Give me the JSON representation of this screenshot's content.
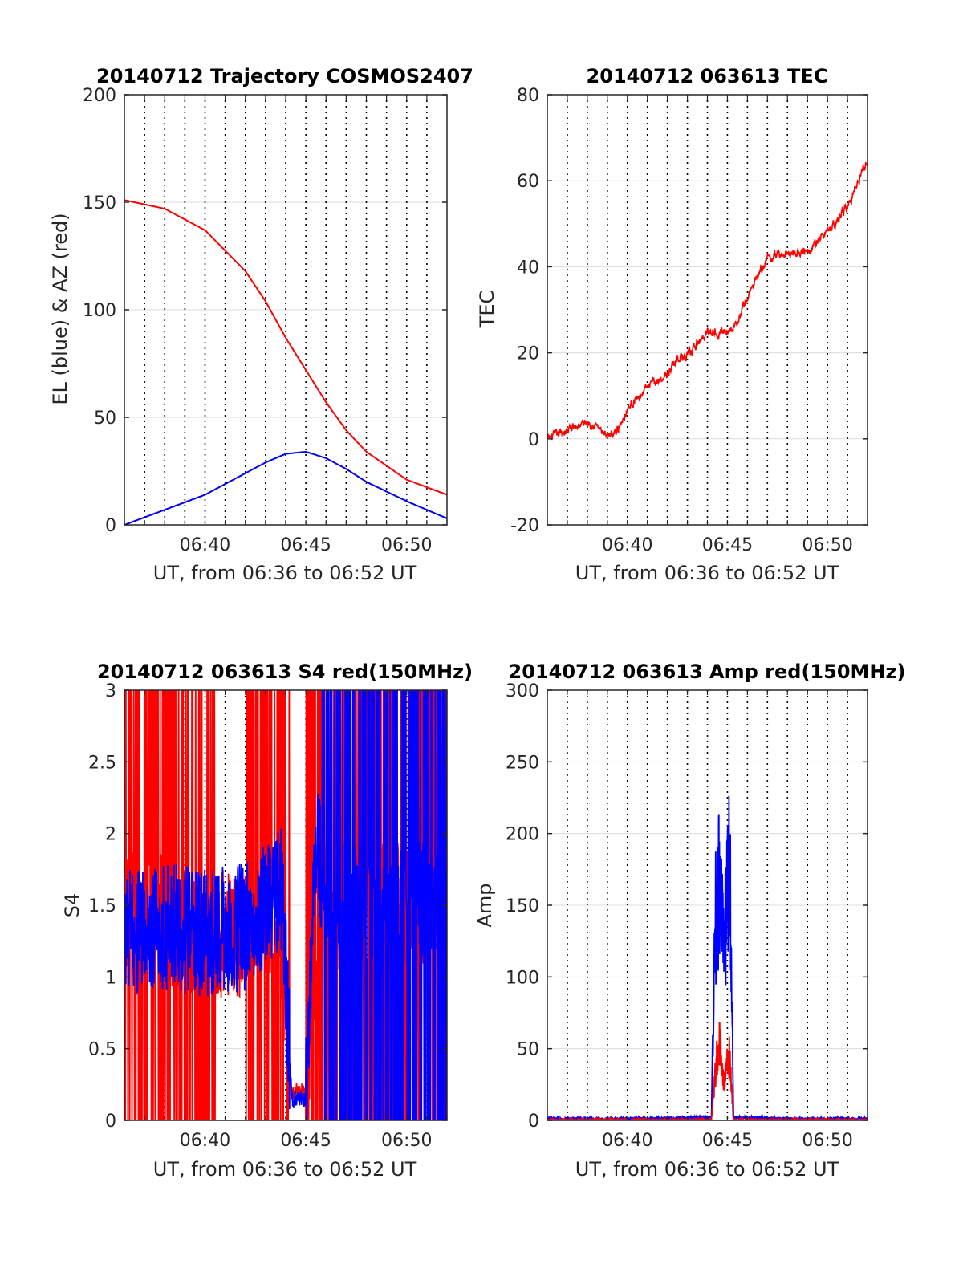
{
  "colors": {
    "red": "#ff0000",
    "blue": "#0000ff",
    "grid": "#dcdcdc",
    "axis": "#262626"
  },
  "chart_data": [
    {
      "type": "line",
      "title": "20140712 Trajectory COSMOS2407",
      "xlabel": "UT, from 06:36 to 06:52 UT",
      "ylabel": "EL (blue) & AZ (red)",
      "xlim": [
        "06:36",
        "06:52"
      ],
      "ylim": [
        0,
        200
      ],
      "xticks": [
        "06:40",
        "06:45",
        "06:50"
      ],
      "yticks": [
        "0",
        "50",
        "100",
        "150",
        "200"
      ],
      "grid": "horizontal at y ticks; dotted vertical every 1 min",
      "series": [
        {
          "color": "red",
          "x": [
            "06:36",
            "06:38",
            "06:40",
            "06:42",
            "06:43",
            "06:44",
            "06:45",
            "06:46",
            "06:47",
            "06:48",
            "06:50",
            "06:52"
          ],
          "y": [
            151,
            147,
            137,
            118,
            104,
            87,
            72,
            57,
            44,
            34,
            21,
            14
          ]
        },
        {
          "color": "blue",
          "x": [
            "06:36",
            "06:38",
            "06:40",
            "06:42",
            "06:43",
            "06:44",
            "06:45",
            "06:46",
            "06:47",
            "06:48",
            "06:50",
            "06:52"
          ],
          "y": [
            0,
            7,
            14,
            24,
            29,
            33,
            34,
            31,
            26,
            20,
            11,
            3
          ]
        }
      ]
    },
    {
      "type": "line",
      "title": "20140712 063613 TEC",
      "xlabel": "UT, from 06:36 to 06:52 UT",
      "ylabel": "TEC",
      "xlim": [
        "06:36",
        "06:52"
      ],
      "ylim": [
        -20,
        80
      ],
      "xticks": [
        "06:40",
        "06:45",
        "06:50"
      ],
      "yticks": [
        "-20",
        "0",
        "20",
        "40",
        "60",
        "80"
      ],
      "grid": "horizontal at y ticks; dotted vertical every 1 min",
      "series": [
        {
          "color": "red",
          "x": [
            "06:36",
            "06:37",
            "06:38",
            "06:38.5",
            "06:39",
            "06:39.5",
            "06:40",
            "06:41",
            "06:42",
            "06:42.5",
            "06:43",
            "06:43.5",
            "06:44",
            "06:45",
            "06:45.5",
            "06:46",
            "06:47",
            "06:48",
            "06:49",
            "06:50",
            "06:51",
            "06:52"
          ],
          "y": [
            0,
            2,
            4,
            3,
            0,
            2,
            7,
            12,
            15,
            19,
            19,
            22,
            25,
            25,
            27,
            33,
            42,
            43,
            44,
            48,
            54,
            65
          ]
        }
      ]
    },
    {
      "type": "line",
      "title": "20140712 063613 S4 red(150MHz)",
      "xlabel": "UT, from 06:36 to 06:52 UT",
      "ylabel": "S4",
      "xlim": [
        "06:36",
        "06:52"
      ],
      "ylim": [
        0,
        3
      ],
      "xticks": [
        "06:40",
        "06:45",
        "06:50"
      ],
      "yticks": [
        "0",
        "0.5",
        "1",
        "1.5",
        "2",
        "2.5",
        "3"
      ],
      "grid": "horizontal at y ticks; dotted vertical every 1 min",
      "series": [
        {
          "color": "red",
          "x": [
            "06:36",
            "06:38",
            "06:40",
            "06:42",
            "06:43",
            "06:43.8",
            "06:44.3",
            "06:45",
            "06:45.5",
            "06:46",
            "06:46.5",
            "06:48",
            "06:50",
            "06:52"
          ],
          "y": [
            1.5,
            1.4,
            1.3,
            1.3,
            1.4,
            1.2,
            0.2,
            0.2,
            1.3,
            1.5,
            1.5,
            1.5,
            1.5,
            1.5
          ]
        },
        {
          "color": "blue",
          "x": [
            "06:36",
            "06:38",
            "06:40",
            "06:42",
            "06:43",
            "06:43.8",
            "06:44.3",
            "06:45",
            "06:45.5",
            "06:46",
            "06:46.5",
            "06:48",
            "06:50",
            "06:52"
          ],
          "y": [
            1.3,
            1.35,
            1.3,
            1.35,
            1.5,
            1.6,
            0.15,
            0.15,
            2.0,
            1.5,
            1.5,
            1.5,
            1.5,
            1.5
          ]
        }
      ]
    },
    {
      "type": "line",
      "title": "20140712 063613 Amp red(150MHz)",
      "xlabel": "UT, from 06:36 to 06:52 UT",
      "ylabel": "Amp",
      "xlim": [
        "06:36",
        "06:52"
      ],
      "ylim": [
        0,
        300
      ],
      "xticks": [
        "06:40",
        "06:45",
        "06:50"
      ],
      "yticks": [
        "0",
        "50",
        "100",
        "150",
        "200",
        "250",
        "300"
      ],
      "grid": "horizontal at y ticks; dotted vertical every 1 min",
      "series": [
        {
          "color": "blue",
          "x": [
            "06:36",
            "06:40",
            "06:44.2",
            "06:44.4",
            "06:44.6",
            "06:44.8",
            "06:45",
            "06:45.1",
            "06:45.3",
            "06:48",
            "06:52"
          ],
          "y": [
            1,
            1,
            2,
            140,
            170,
            120,
            150,
            205,
            2,
            1,
            1
          ]
        },
        {
          "color": "red",
          "x": [
            "06:36",
            "06:40",
            "06:44.2",
            "06:44.4",
            "06:44.6",
            "06:44.8",
            "06:45",
            "06:45.1",
            "06:45.3",
            "06:48",
            "06:52"
          ],
          "y": [
            0,
            0,
            0,
            35,
            55,
            30,
            40,
            45,
            0,
            0,
            0
          ]
        }
      ]
    }
  ]
}
